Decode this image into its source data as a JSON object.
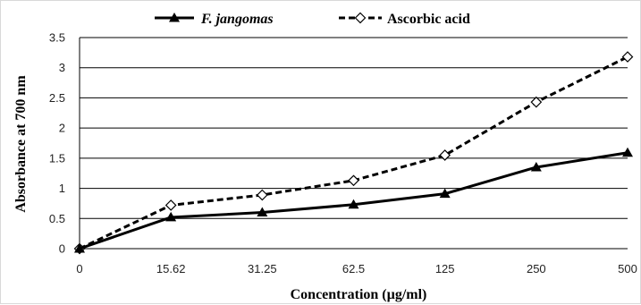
{
  "chart_data": {
    "type": "line",
    "categories": [
      "0",
      "15.62",
      "31.25",
      "62.5",
      "125",
      "250",
      "500"
    ],
    "series": [
      {
        "name": "F. jangomas",
        "values": [
          0,
          0.52,
          0.6,
          0.73,
          0.91,
          1.35,
          1.59
        ],
        "color": "#000000",
        "line": "solid",
        "marker": "filled-triangle"
      },
      {
        "name": "Ascorbic acid",
        "values": [
          0,
          0.72,
          0.89,
          1.13,
          1.55,
          2.43,
          3.18
        ],
        "color": "#000000",
        "line": "dashed",
        "marker": "open-diamond"
      }
    ],
    "xlabel": "Concentration (µg/ml)",
    "ylabel": "Absorbance at 700 nm",
    "ylim": [
      0,
      3.5
    ],
    "yticks": [
      "0",
      "0.5",
      "1",
      "1.5",
      "2",
      "2.5",
      "3",
      "3.5"
    ],
    "grid": "horizontal",
    "legend_position": "top"
  }
}
